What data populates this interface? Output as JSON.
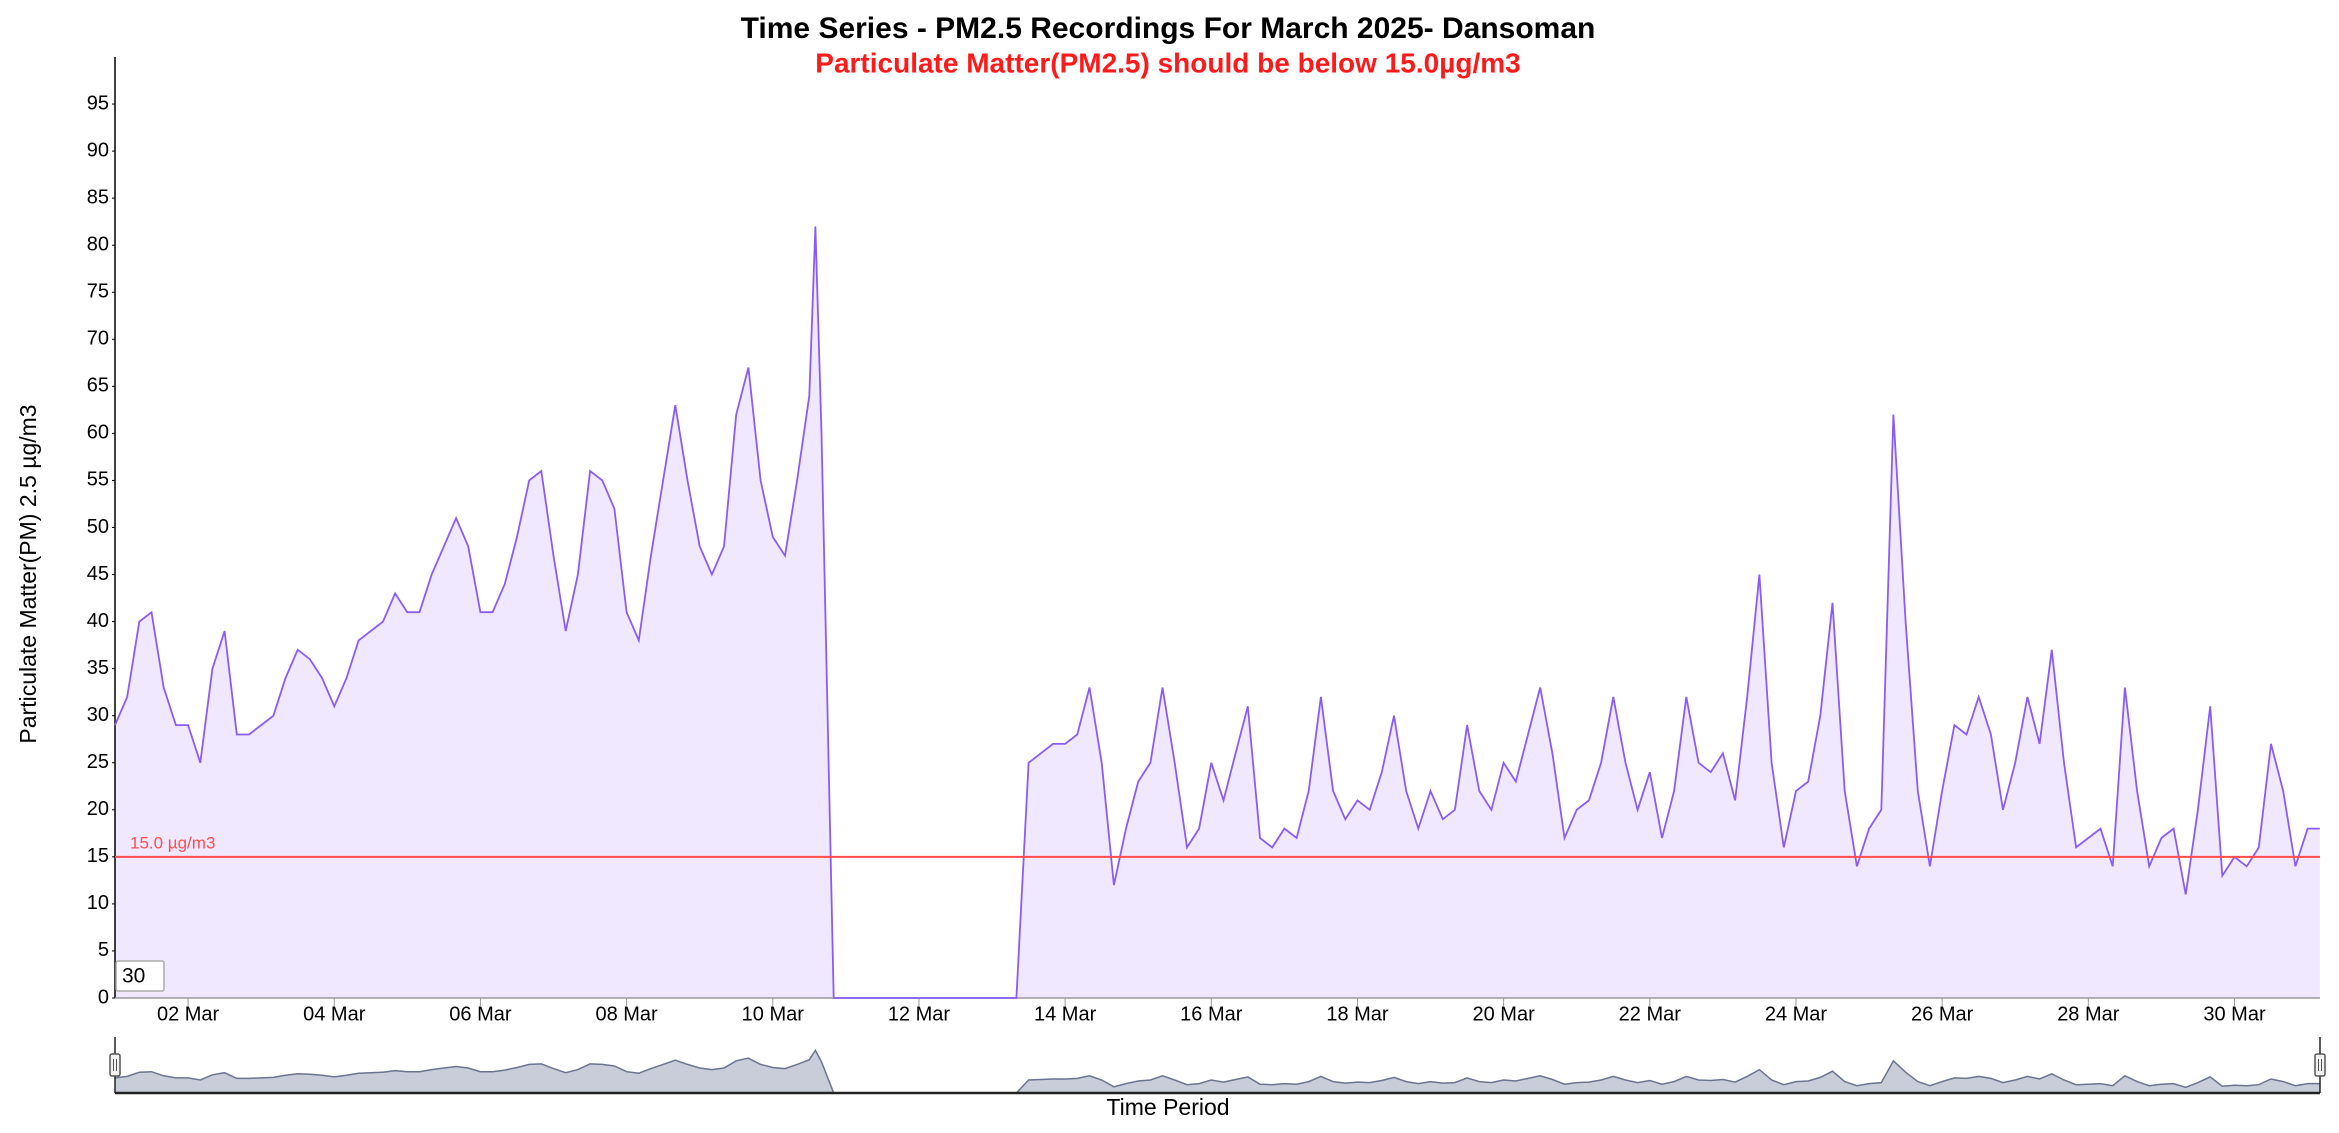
{
  "chart_data": {
    "type": "area",
    "title": "Time Series - PM2.5 Recordings For March 2025- Dansoman",
    "subtitle": "Particulate Matter(PM2.5) should be below 15.0µg/m3",
    "y_label": "Particulate Matter(PM) 2.5 µg/m3",
    "x_label": "Time Period",
    "input_value": "30",
    "threshold": {
      "value": 15,
      "label": "15.0 µg/m3",
      "color": "#ff4d4d"
    },
    "xlim": [
      1,
      31.17
    ],
    "ylim": [
      0,
      100
    ],
    "yticks": [
      0,
      5,
      10,
      15,
      20,
      25,
      30,
      35,
      40,
      45,
      50,
      55,
      60,
      65,
      70,
      75,
      80,
      85,
      90,
      95
    ],
    "xticks": [
      {
        "value": 2,
        "label": "02 Mar"
      },
      {
        "value": 4,
        "label": "04 Mar"
      },
      {
        "value": 6,
        "label": "06 Mar"
      },
      {
        "value": 8,
        "label": "08 Mar"
      },
      {
        "value": 10,
        "label": "10 Mar"
      },
      {
        "value": 12,
        "label": "12 Mar"
      },
      {
        "value": 14,
        "label": "14 Mar"
      },
      {
        "value": 16,
        "label": "16 Mar"
      },
      {
        "value": 18,
        "label": "18 Mar"
      },
      {
        "value": 20,
        "label": "20 Mar"
      },
      {
        "value": 22,
        "label": "22 Mar"
      },
      {
        "value": 24,
        "label": "24 Mar"
      },
      {
        "value": 26,
        "label": "26 Mar"
      },
      {
        "value": 28,
        "label": "28 Mar"
      },
      {
        "value": 30,
        "label": "30 Mar"
      }
    ],
    "x": [
      1,
      1.167,
      1.333,
      1.5,
      1.667,
      1.833,
      2,
      2.167,
      2.333,
      2.5,
      2.667,
      2.833,
      3,
      3.167,
      3.333,
      3.5,
      3.667,
      3.833,
      4,
      4.167,
      4.333,
      4.5,
      4.667,
      4.833,
      5,
      5.167,
      5.333,
      5.5,
      5.667,
      5.833,
      6,
      6.167,
      6.333,
      6.5,
      6.667,
      6.833,
      7,
      7.167,
      7.333,
      7.5,
      7.667,
      7.833,
      8,
      8.167,
      8.333,
      8.5,
      8.667,
      8.833,
      9,
      9.167,
      9.333,
      9.5,
      9.667,
      9.833,
      10,
      10.167,
      10.333,
      10.5,
      10.583,
      10.667,
      10.833,
      11,
      11.167,
      11.333,
      11.5,
      11.667,
      11.833,
      12,
      12.167,
      12.333,
      12.5,
      12.667,
      12.833,
      13,
      13.167,
      13.333,
      13.5,
      13.667,
      13.833,
      14,
      14.167,
      14.333,
      14.5,
      14.667,
      14.833,
      15,
      15.167,
      15.333,
      15.5,
      15.667,
      15.833,
      16,
      16.167,
      16.333,
      16.5,
      16.667,
      16.833,
      17,
      17.167,
      17.333,
      17.5,
      17.667,
      17.833,
      18,
      18.167,
      18.333,
      18.5,
      18.667,
      18.833,
      19,
      19.167,
      19.333,
      19.5,
      19.667,
      19.833,
      20,
      20.167,
      20.333,
      20.5,
      20.667,
      20.833,
      21,
      21.167,
      21.333,
      21.5,
      21.667,
      21.833,
      22,
      22.167,
      22.333,
      22.5,
      22.667,
      22.833,
      23,
      23.167,
      23.333,
      23.5,
      23.667,
      23.833,
      24,
      24.167,
      24.333,
      24.5,
      24.667,
      24.833,
      25,
      25.167,
      25.333,
      25.5,
      25.667,
      25.833,
      26,
      26.167,
      26.333,
      26.5,
      26.667,
      26.833,
      27,
      27.167,
      27.333,
      27.5,
      27.667,
      27.833,
      28,
      28.167,
      28.333,
      28.5,
      28.667,
      28.833,
      29,
      29.167,
      29.333,
      29.5,
      29.667,
      29.833,
      30,
      30.167,
      30.333,
      30.5,
      30.667,
      30.833,
      31,
      31.167
    ],
    "series": [
      {
        "color": "#8a5cf6",
        "fill_color": "#f0e8fe",
        "values": [
          29,
          32,
          40,
          41,
          33,
          29,
          29,
          25,
          35,
          39,
          28,
          28,
          29,
          30,
          34,
          37,
          36,
          34,
          31,
          34,
          38,
          39,
          40,
          43,
          41,
          41,
          45,
          48,
          51,
          48,
          41,
          41,
          44,
          49,
          55,
          56,
          47,
          39,
          45,
          56,
          55,
          52,
          41,
          38,
          47,
          55,
          63,
          55,
          48,
          45,
          48,
          62,
          67,
          55,
          49,
          47,
          55,
          64,
          82,
          60,
          0,
          0,
          0,
          0,
          0,
          0,
          0,
          0,
          0,
          0,
          0,
          0,
          0,
          0,
          0,
          0,
          25,
          26,
          27,
          27,
          28,
          33,
          25,
          12,
          18,
          23,
          25,
          33,
          25,
          16,
          18,
          25,
          21,
          26,
          31,
          17,
          16,
          18,
          17,
          22,
          32,
          22,
          19,
          21,
          20,
          24,
          30,
          22,
          18,
          22,
          19,
          20,
          29,
          22,
          20,
          25,
          23,
          28,
          33,
          26,
          17,
          20,
          21,
          25,
          32,
          25,
          20,
          24,
          17,
          22,
          32,
          25,
          24,
          26,
          21,
          32,
          45,
          25,
          16,
          22,
          23,
          30,
          42,
          22,
          14,
          18,
          20,
          62,
          40,
          22,
          14,
          22,
          29,
          28,
          32,
          28,
          20,
          25,
          32,
          27,
          37,
          25,
          16,
          17,
          18,
          14,
          33,
          22,
          14,
          17,
          18,
          11,
          20,
          31,
          13,
          15,
          14,
          16,
          27,
          22,
          14,
          18,
          18
        ]
      }
    ],
    "navigator_color": "#6b7490",
    "navigator_fill": "#c9cdd9"
  }
}
